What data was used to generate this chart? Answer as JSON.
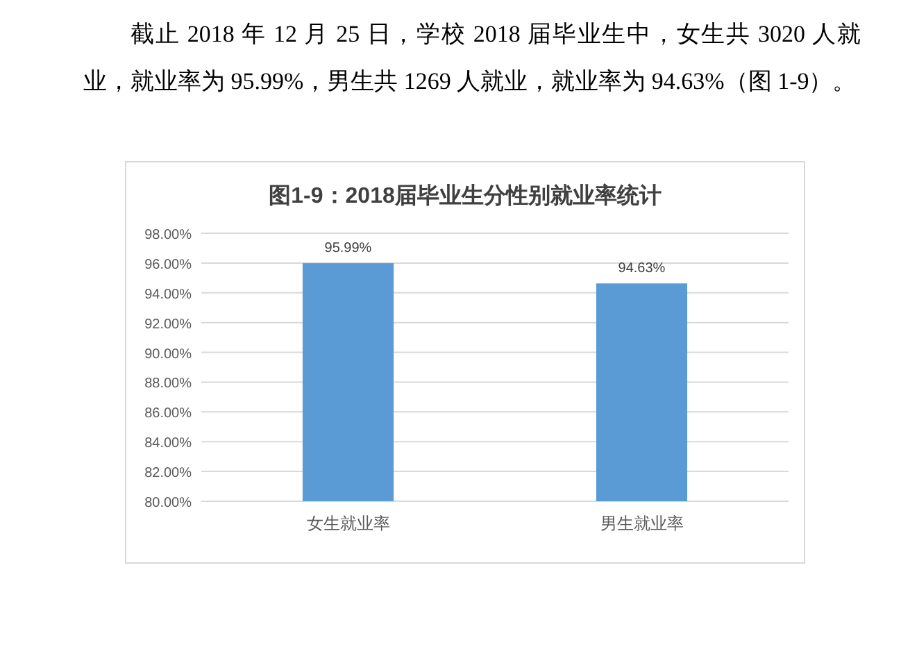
{
  "chart_data": {
    "type": "bar",
    "title": "图1-9：2018届毕业生分性别就业率统计",
    "annotations": [
      "截止 2018 年 12 月 25 日，学校 2018 届毕业生中，女生共 3020 人就业，就业率为 95.99%，男生共 1269 人就业，就业率为 94.63%（图 1-9）。"
    ],
    "categories": [
      "女生就业率",
      "男生就业率"
    ],
    "values": [
      95.99,
      94.63
    ],
    "value_labels": [
      "95.99%",
      "94.63%"
    ],
    "color": "#5b9bd5",
    "ylim": [
      80,
      98
    ],
    "yticks": [
      {
        "value": 80,
        "label": "80.00%"
      },
      {
        "value": 82,
        "label": "82.00%"
      },
      {
        "value": 84,
        "label": "84.00%"
      },
      {
        "value": 86,
        "label": "86.00%"
      },
      {
        "value": 88,
        "label": "88.00%"
      },
      {
        "value": 90,
        "label": "90.00%"
      },
      {
        "value": 92,
        "label": "92.00%"
      },
      {
        "value": 94,
        "label": "94.00%"
      },
      {
        "value": 96,
        "label": "96.00%"
      },
      {
        "value": 98,
        "label": "98.00%"
      }
    ],
    "grid": "y"
  }
}
